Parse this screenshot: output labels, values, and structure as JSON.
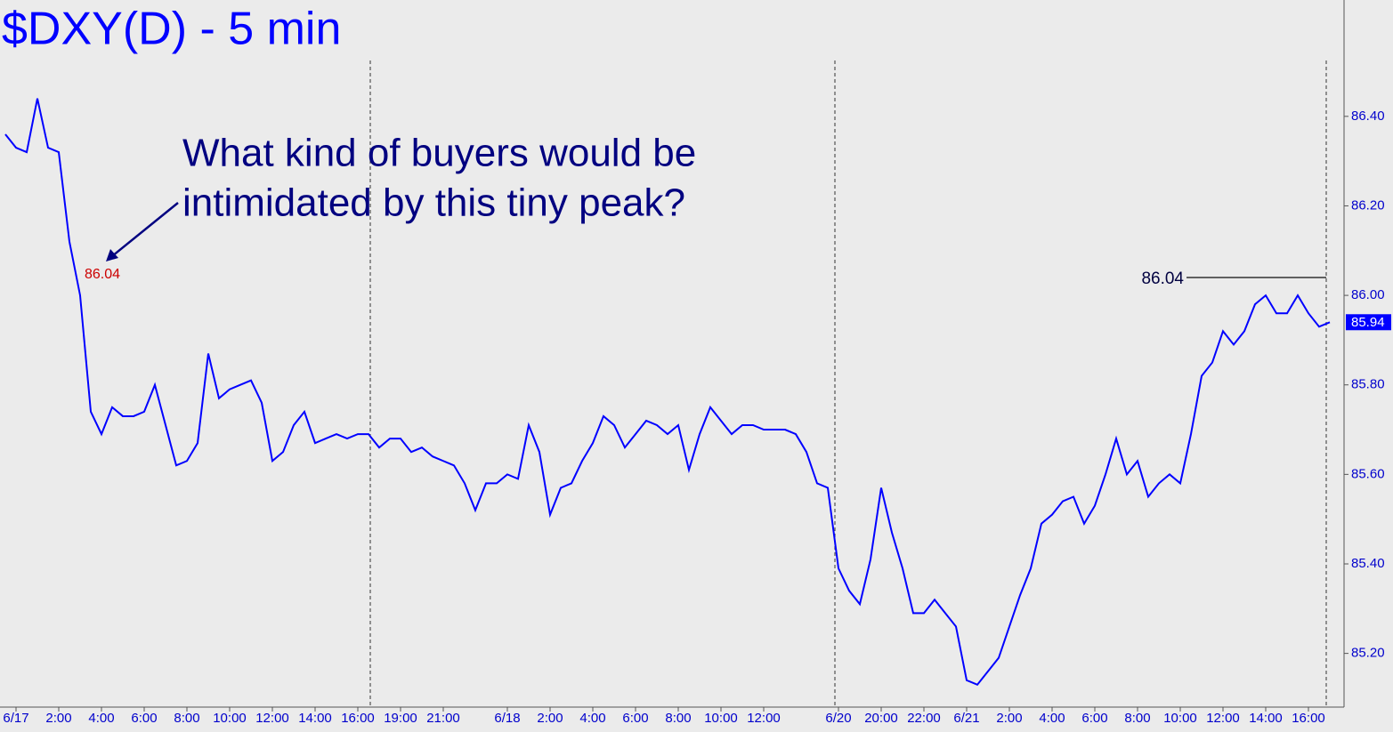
{
  "chart_data": {
    "type": "line",
    "title": "$DXY(D) - 5 min",
    "annotation": [
      "What kind of buyers would be",
      "intimidated by this tiny peak?"
    ],
    "peak_label": 86.04,
    "resistance_level": 86.04,
    "last_price": 85.94,
    "categories": [
      null,
      "6/17",
      null,
      null,
      null,
      "2:00",
      null,
      null,
      null,
      "4:00",
      null,
      null,
      null,
      "6:00",
      null,
      null,
      null,
      "8:00",
      null,
      null,
      null,
      "10:00",
      null,
      null,
      null,
      "12:00",
      null,
      null,
      null,
      "14:00",
      null,
      null,
      null,
      "16:00",
      null,
      null,
      null,
      "19:00",
      null,
      null,
      null,
      "21:00",
      null,
      null,
      null,
      null,
      null,
      "6/18",
      null,
      null,
      null,
      "2:00",
      null,
      null,
      null,
      "4:00",
      null,
      null,
      null,
      "6:00",
      null,
      null,
      null,
      "8:00",
      null,
      null,
      null,
      "10:00",
      null,
      null,
      null,
      "12:00",
      null,
      null,
      null,
      null,
      null,
      null,
      "6/20",
      null,
      null,
      null,
      "20:00",
      null,
      null,
      null,
      "22:00",
      null,
      null,
      null,
      "6/21",
      null,
      null,
      null,
      "2:00",
      null,
      null,
      null,
      "4:00",
      null,
      null,
      null,
      "6:00",
      null,
      null,
      null,
      "8:00",
      null,
      null,
      null,
      "10:00",
      null,
      null,
      null,
      "12:00",
      null,
      null,
      null,
      "14:00",
      null,
      null,
      null,
      "16:00",
      null,
      null
    ],
    "series": [
      {
        "name": "DXY",
        "color": "#0000ff",
        "values": [
          86.36,
          86.33,
          86.32,
          86.44,
          86.33,
          86.32,
          86.12,
          86.0,
          85.74,
          85.69,
          85.75,
          85.73,
          85.73,
          85.74,
          85.8,
          85.71,
          85.62,
          85.63,
          85.67,
          85.87,
          85.77,
          85.79,
          85.8,
          85.81,
          85.76,
          85.63,
          85.65,
          85.71,
          85.74,
          85.67,
          85.68,
          85.69,
          85.68,
          85.69,
          85.69,
          85.66,
          85.68,
          85.68,
          85.65,
          85.66,
          85.64,
          85.63,
          85.62,
          85.58,
          85.52,
          85.58,
          85.58,
          85.6,
          85.59,
          85.71,
          85.65,
          85.51,
          85.57,
          85.58,
          85.63,
          85.67,
          85.73,
          85.71,
          85.66,
          85.69,
          85.72,
          85.71,
          85.69,
          85.71,
          85.61,
          85.69,
          85.75,
          85.72,
          85.69,
          85.71,
          85.71,
          85.7,
          85.7,
          85.7,
          85.69,
          85.65,
          85.58,
          85.57,
          85.39,
          85.34,
          85.31,
          85.41,
          85.57,
          85.47,
          85.39,
          85.29,
          85.29,
          85.32,
          85.29,
          85.26,
          85.14,
          85.13,
          85.16,
          85.19,
          85.26,
          85.33,
          85.39,
          85.49,
          85.51,
          85.54,
          85.55,
          85.49,
          85.53,
          85.6,
          85.68,
          85.6,
          85.63,
          85.55,
          85.58,
          85.6,
          85.58,
          85.69,
          85.82,
          85.85,
          85.92,
          85.89,
          85.92,
          85.98,
          86.0,
          85.96,
          85.96,
          86.0,
          85.96,
          85.93,
          85.94
        ]
      }
    ],
    "ylim": [
      85.08,
      86.66
    ],
    "yticks": [
      {
        "value": 85.2,
        "label": "85.20"
      },
      {
        "value": 85.4,
        "label": "85.40"
      },
      {
        "value": 85.6,
        "label": "85.60"
      },
      {
        "value": 85.8,
        "label": "85.80"
      },
      {
        "value": 86.0,
        "label": "86.00"
      },
      {
        "value": 86.2,
        "label": "86.20"
      },
      {
        "value": 86.4,
        "label": "86.40"
      }
    ],
    "grid": false
  }
}
